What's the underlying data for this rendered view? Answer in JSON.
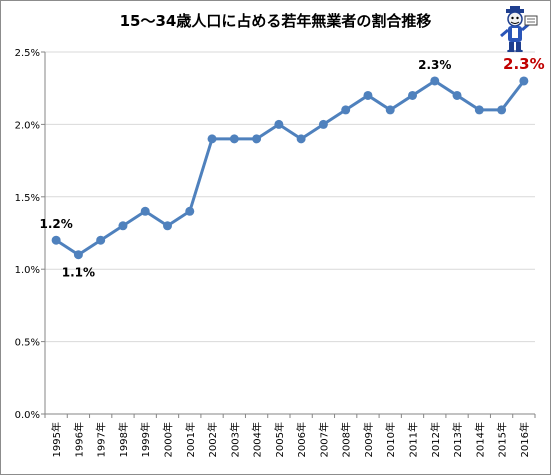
{
  "chart_data": {
    "type": "line",
    "title": "15～34歳人口に占める若年無業者の割合推移",
    "xlabel": "",
    "ylabel": "",
    "categories": [
      "1995年",
      "1996年",
      "1997年",
      "1998年",
      "1999年",
      "2000年",
      "2001年",
      "2002年",
      "2003年",
      "2004年",
      "2005年",
      "2006年",
      "2007年",
      "2008年",
      "2009年",
      "2010年",
      "2011年",
      "2012年",
      "2013年",
      "2014年",
      "2015年",
      "2016年"
    ],
    "series": [
      {
        "values": [
          1.2,
          1.1,
          1.2,
          1.3,
          1.4,
          1.3,
          1.4,
          1.9,
          1.9,
          1.9,
          2.0,
          1.9,
          2.0,
          2.1,
          2.2,
          2.1,
          2.2,
          2.3,
          2.2,
          2.1,
          2.1,
          2.3
        ]
      }
    ],
    "ylim": [
      0.0,
      2.5
    ],
    "yticks": [
      "0.0%",
      "0.5%",
      "1.0%",
      "1.5%",
      "2.0%",
      "2.5%"
    ],
    "grid": true,
    "legend": "none",
    "annotations": [
      {
        "index": 0,
        "text": "1.2%",
        "position": "above",
        "color": "#000000",
        "emphasis": false
      },
      {
        "index": 1,
        "text": "1.1%",
        "position": "below",
        "color": "#000000",
        "emphasis": false
      },
      {
        "index": 17,
        "text": "2.3%",
        "position": "above",
        "color": "#000000",
        "emphasis": false
      },
      {
        "index": 21,
        "text": "2.3%",
        "position": "above",
        "color": "#c00000",
        "emphasis": true
      }
    ],
    "colors": {
      "line": "#4f81bd",
      "marker": "#4f81bd",
      "grid": "#d9d9d9",
      "axis": "#868686",
      "highlight": "#c00000"
    }
  }
}
